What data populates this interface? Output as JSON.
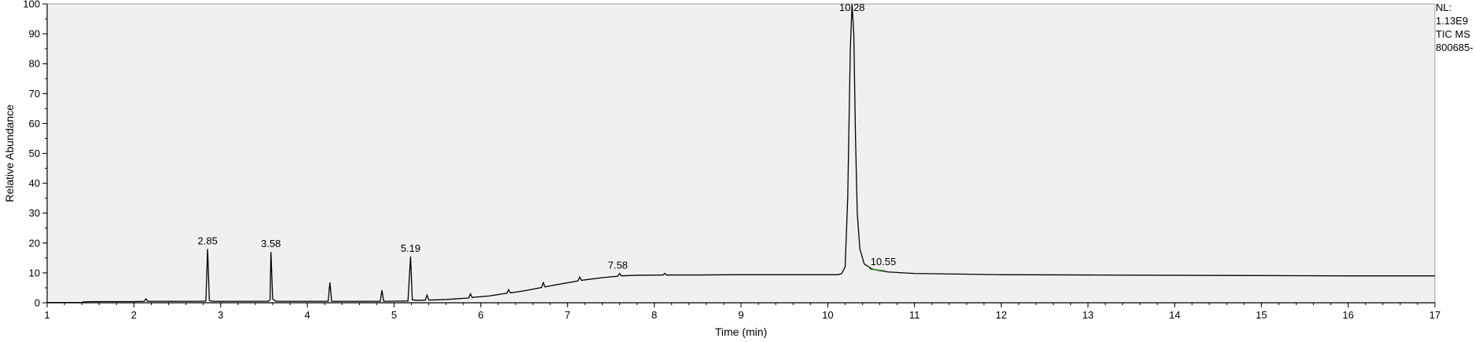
{
  "info": {
    "nl_label": "NL:",
    "nl_value": "1.13E9",
    "trace_type": "TIC  MS",
    "file_name": "800685-"
  },
  "chart_data": {
    "type": "line",
    "title": "",
    "xlabel": "Time (min)",
    "ylabel": "Relative Abundance",
    "xlim": [
      1,
      17
    ],
    "ylim": [
      0,
      100
    ],
    "x_ticks": [
      1,
      2,
      3,
      4,
      5,
      6,
      7,
      8,
      9,
      10,
      11,
      12,
      13,
      14,
      15,
      16,
      17
    ],
    "y_ticks": [
      0,
      10,
      20,
      30,
      40,
      50,
      60,
      70,
      80,
      90,
      100
    ],
    "grid": false,
    "colors": {
      "trace": "#000000",
      "plot_bg": "#f0f0f0",
      "marker_10_55": "#2e8b2e"
    },
    "series": [
      {
        "values_format": "[time_min, relative_abundance]",
        "points": [
          [
            1.0,
            0.1
          ],
          [
            1.4,
            0.1
          ],
          [
            1.42,
            0.3
          ],
          [
            1.5,
            0.4
          ],
          [
            2.0,
            0.4
          ],
          [
            2.12,
            0.5
          ],
          [
            2.14,
            1.3
          ],
          [
            2.16,
            0.5
          ],
          [
            2.8,
            0.5
          ],
          [
            2.83,
            0.6
          ],
          [
            2.85,
            18.0
          ],
          [
            2.87,
            0.8
          ],
          [
            2.9,
            0.5
          ],
          [
            3.55,
            0.5
          ],
          [
            3.57,
            1.0
          ],
          [
            3.58,
            17.0
          ],
          [
            3.6,
            1.2
          ],
          [
            3.64,
            0.5
          ],
          [
            4.24,
            0.5
          ],
          [
            4.26,
            6.8
          ],
          [
            4.28,
            0.5
          ],
          [
            4.84,
            0.5
          ],
          [
            4.86,
            4.2
          ],
          [
            4.88,
            0.5
          ],
          [
            5.16,
            0.6
          ],
          [
            5.19,
            15.5
          ],
          [
            5.21,
            1.0
          ],
          [
            5.25,
            0.8
          ],
          [
            5.36,
            0.9
          ],
          [
            5.38,
            2.6
          ],
          [
            5.4,
            0.9
          ],
          [
            5.6,
            1.1
          ],
          [
            5.86,
            1.6
          ],
          [
            5.88,
            3.0
          ],
          [
            5.9,
            1.8
          ],
          [
            6.1,
            2.3
          ],
          [
            6.3,
            3.2
          ],
          [
            6.32,
            4.4
          ],
          [
            6.34,
            3.3
          ],
          [
            6.5,
            4.0
          ],
          [
            6.7,
            5.1
          ],
          [
            6.72,
            6.7
          ],
          [
            6.74,
            5.3
          ],
          [
            6.9,
            6.2
          ],
          [
            7.12,
            7.3
          ],
          [
            7.14,
            8.6
          ],
          [
            7.16,
            7.5
          ],
          [
            7.4,
            8.4
          ],
          [
            7.58,
            8.9
          ],
          [
            7.6,
            9.8
          ],
          [
            7.62,
            9.0
          ],
          [
            7.8,
            9.2
          ],
          [
            8.1,
            9.3
          ],
          [
            8.12,
            9.8
          ],
          [
            8.14,
            9.3
          ],
          [
            8.5,
            9.3
          ],
          [
            9.0,
            9.4
          ],
          [
            9.5,
            9.4
          ],
          [
            10.0,
            9.4
          ],
          [
            10.12,
            9.4
          ],
          [
            10.16,
            9.8
          ],
          [
            10.2,
            12.0
          ],
          [
            10.23,
            35.0
          ],
          [
            10.26,
            85.0
          ],
          [
            10.28,
            100.0
          ],
          [
            10.3,
            90.0
          ],
          [
            10.32,
            55.0
          ],
          [
            10.34,
            30.0
          ],
          [
            10.37,
            18.0
          ],
          [
            10.42,
            13.0
          ],
          [
            10.5,
            11.5
          ],
          [
            10.55,
            11.0
          ],
          [
            10.7,
            10.3
          ],
          [
            11.0,
            9.8
          ],
          [
            12.0,
            9.4
          ],
          [
            13.0,
            9.3
          ],
          [
            14.0,
            9.2
          ],
          [
            15.0,
            9.1
          ],
          [
            16.0,
            9.0
          ],
          [
            17.0,
            9.0
          ]
        ]
      }
    ],
    "peak_labels": [
      {
        "label": "2.85",
        "x": 2.85,
        "y": 18.0
      },
      {
        "label": "3.58",
        "x": 3.58,
        "y": 17.0
      },
      {
        "label": "5.19",
        "x": 5.19,
        "y": 15.5
      },
      {
        "label": "7.58",
        "x": 7.58,
        "y": 9.8
      },
      {
        "label": "10.28",
        "x": 10.28,
        "y": 100.0
      },
      {
        "label": "10.55",
        "x": 10.55,
        "y": 11.0
      }
    ]
  }
}
